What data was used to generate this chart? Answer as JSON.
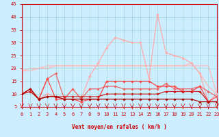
{
  "title": "",
  "xlabel": "Vent moyen/en rafales ( km/h )",
  "xlim": [
    0,
    23
  ],
  "ylim": [
    5,
    45
  ],
  "yticks": [
    5,
    10,
    15,
    20,
    25,
    30,
    35,
    40,
    45
  ],
  "xticks": [
    0,
    1,
    2,
    3,
    4,
    5,
    6,
    7,
    8,
    9,
    10,
    11,
    12,
    13,
    14,
    15,
    16,
    17,
    18,
    19,
    20,
    21,
    22,
    23
  ],
  "background_color": "#cceeff",
  "grid_color": "#99cccc",
  "series": [
    {
      "x": [
        0,
        1,
        2,
        3,
        4,
        5,
        6,
        7,
        8,
        9,
        10,
        11,
        12,
        13,
        14,
        15,
        16,
        17,
        18,
        19,
        20,
        21,
        22,
        23
      ],
      "y": [
        19,
        20,
        20,
        21,
        21,
        21,
        21,
        21,
        21,
        21,
        21,
        21,
        21,
        21,
        21,
        21,
        21,
        21,
        21,
        21,
        22,
        18,
        13,
        10
      ],
      "color": "#ffbbbb",
      "linewidth": 1.0,
      "marker": null,
      "zorder": 1
    },
    {
      "x": [
        0,
        1,
        2,
        3,
        4,
        5,
        6,
        7,
        8,
        9,
        10,
        11,
        12,
        13,
        14,
        15,
        16,
        17,
        18,
        19,
        20,
        21,
        22,
        23
      ],
      "y": [
        19,
        19,
        20,
        20,
        21,
        21,
        21,
        21,
        21,
        21,
        21,
        21,
        21,
        21,
        21,
        21,
        21,
        21,
        21,
        21,
        21,
        21,
        21,
        10
      ],
      "color": "#ffbbbb",
      "linewidth": 1.0,
      "marker": null,
      "zorder": 1
    },
    {
      "x": [
        0,
        1,
        2,
        3,
        4,
        5,
        6,
        7,
        8,
        9,
        10,
        11,
        12,
        13,
        14,
        15,
        16,
        17,
        18,
        19,
        20,
        21,
        22,
        23
      ],
      "y": [
        10,
        12,
        8,
        10,
        9,
        8,
        12,
        8,
        17,
        22,
        28,
        32,
        31,
        30,
        30,
        16,
        41,
        26,
        25,
        24,
        22,
        18,
        7,
        10
      ],
      "color": "#ffaaaa",
      "linewidth": 0.9,
      "marker": "D",
      "markersize": 1.8,
      "zorder": 3
    },
    {
      "x": [
        0,
        1,
        2,
        3,
        4,
        5,
        6,
        7,
        8,
        9,
        10,
        11,
        12,
        13,
        14,
        15,
        16,
        17,
        18,
        19,
        20,
        21,
        22,
        23
      ],
      "y": [
        10,
        11,
        8,
        16,
        18,
        8,
        12,
        8,
        12,
        12,
        13,
        13,
        12,
        12,
        12,
        12,
        12,
        14,
        12,
        12,
        12,
        13,
        11,
        9
      ],
      "color": "#ee6666",
      "linewidth": 0.9,
      "marker": "D",
      "markersize": 1.8,
      "zorder": 4
    },
    {
      "x": [
        0,
        1,
        2,
        3,
        4,
        5,
        6,
        7,
        8,
        9,
        10,
        11,
        12,
        13,
        14,
        15,
        16,
        17,
        18,
        19,
        20,
        21,
        22,
        23
      ],
      "y": [
        10,
        12,
        8,
        16,
        8,
        8,
        8,
        7,
        8,
        8,
        15,
        15,
        15,
        15,
        15,
        15,
        13,
        13,
        13,
        11,
        11,
        13,
        7,
        9
      ],
      "color": "#ff4444",
      "linewidth": 0.9,
      "marker": "D",
      "markersize": 1.8,
      "zorder": 5
    },
    {
      "x": [
        0,
        1,
        2,
        3,
        4,
        5,
        6,
        7,
        8,
        9,
        10,
        11,
        12,
        13,
        14,
        15,
        16,
        17,
        18,
        19,
        20,
        21,
        22,
        23
      ],
      "y": [
        10,
        11,
        8,
        9,
        9,
        9,
        9,
        9,
        9,
        9,
        10,
        10,
        10,
        10,
        10,
        10,
        10,
        11,
        11,
        11,
        11,
        11,
        7,
        7
      ],
      "color": "#cc2222",
      "linewidth": 0.9,
      "marker": "D",
      "markersize": 1.8,
      "zorder": 5
    },
    {
      "x": [
        0,
        1,
        2,
        3,
        4,
        5,
        6,
        7,
        8,
        9,
        10,
        11,
        12,
        13,
        14,
        15,
        16,
        17,
        18,
        19,
        20,
        21,
        22,
        23
      ],
      "y": [
        10,
        12,
        8,
        9,
        9,
        8,
        8,
        8,
        8,
        8,
        8,
        8,
        8,
        8,
        8,
        8,
        8,
        8,
        8,
        8,
        8,
        7,
        7,
        7
      ],
      "color": "#aa0000",
      "linewidth": 0.9,
      "marker": "D",
      "markersize": 1.8,
      "zorder": 6
    }
  ],
  "arrow_color": "#cc0000",
  "label_color": "#cc0000",
  "spine_color": "#cc0000"
}
